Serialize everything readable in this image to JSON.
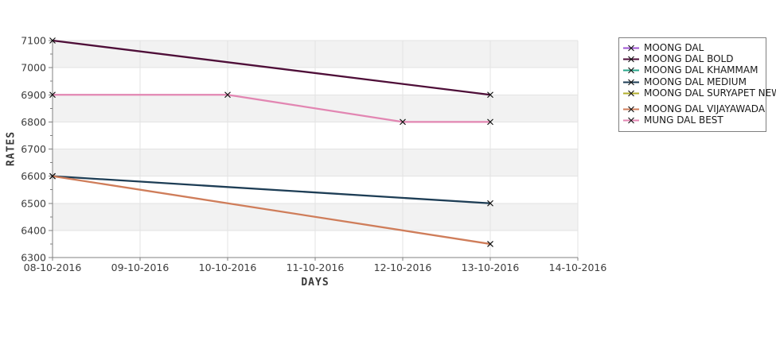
{
  "chart_data": {
    "type": "line",
    "title": "",
    "xlabel": "DAYS",
    "ylabel": "RATES",
    "categories": [
      "08-10-2016",
      "09-10-2016",
      "10-10-2016",
      "11-10-2016",
      "12-10-2016",
      "13-10-2016",
      "14-10-2016"
    ],
    "y_ticks": [
      6300,
      6400,
      6500,
      6600,
      6700,
      6800,
      6900,
      7000,
      7100
    ],
    "ylim": [
      6300,
      7100
    ],
    "y_minor_step": 50,
    "grid": true,
    "legend_position": "right",
    "marker": "x",
    "marker_color": "#111111",
    "band_fill": "#f2f2f2",
    "grid_color": "#e3e3e3",
    "axis_color": "#808080",
    "tick_label_color": "#3d3d3d",
    "series": [
      {
        "name": "MOONG DAL",
        "color": "#9c53d2",
        "points": []
      },
      {
        "name": "MOONG DAL BOLD",
        "color": "#4e0e38",
        "points": [
          [
            "08-10-2016",
            7100
          ],
          [
            "13-10-2016",
            6900
          ]
        ]
      },
      {
        "name": "MOONG DAL KHAMMAM",
        "color": "#28a689",
        "points": []
      },
      {
        "name": "MOONG DAL MEDIUM",
        "color": "#1d3d55",
        "points": [
          [
            "08-10-2016",
            6600
          ],
          [
            "13-10-2016",
            6500
          ]
        ]
      },
      {
        "name": "MOONG DAL SURYAPET NEW",
        "color": "#b2ae2c",
        "points": []
      },
      {
        "name": "MOONG DAL VIJAYAWADA",
        "color": "#cf7d5a",
        "points": [
          [
            "08-10-2016",
            6600
          ],
          [
            "13-10-2016",
            6350
          ]
        ]
      },
      {
        "name": "MUNG DAL BEST",
        "color": "#e286b2",
        "points": [
          [
            "08-10-2016",
            6900
          ],
          [
            "10-10-2016",
            6900
          ],
          [
            "12-10-2016",
            6800
          ],
          [
            "13-10-2016",
            6800
          ]
        ]
      }
    ]
  }
}
